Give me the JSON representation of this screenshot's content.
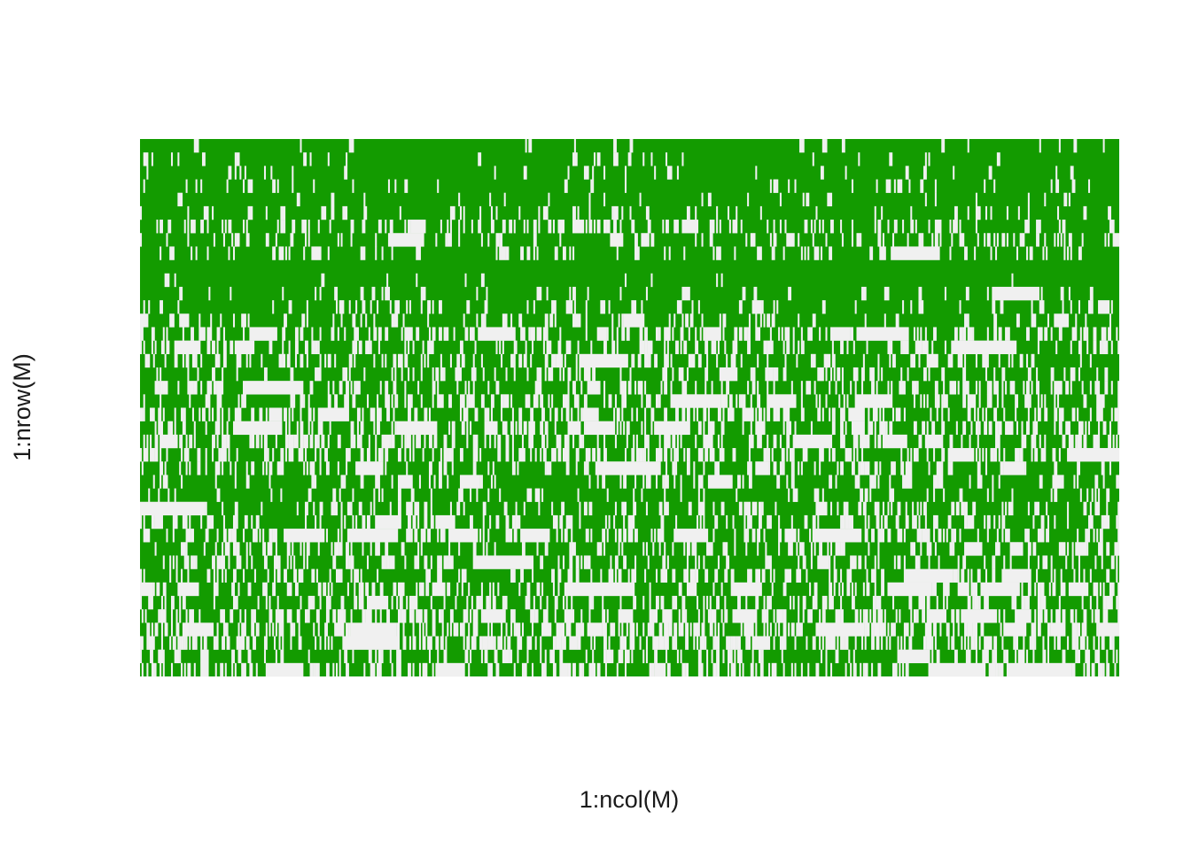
{
  "chart_data": {
    "type": "heatmap",
    "title": "",
    "xlabel": "1:ncol(M)",
    "ylabel": "1:nrow(M)",
    "grid": false,
    "legend": "none",
    "axes_ticks": false,
    "n_rows": 40,
    "n_cols": 600,
    "colors": {
      "present": "#139b00",
      "absent": "#f0f0f0",
      "background": "#ffffff"
    },
    "missing_share_by_row_bottom_to_top": [
      0.34,
      0.18,
      0.4,
      0.38,
      0.3,
      0.24,
      0.26,
      0.22,
      0.24,
      0.2,
      0.28,
      0.22,
      0.2,
      0.08,
      0.16,
      0.22,
      0.28,
      0.3,
      0.26,
      0.22,
      0.24,
      0.26,
      0.18,
      0.2,
      0.22,
      0.26,
      0.14,
      0.1,
      0.07,
      0.02,
      0.0,
      0.14,
      0.14,
      0.18,
      0.08,
      0.06,
      0.05,
      0.04,
      0.03,
      0.02
    ]
  }
}
